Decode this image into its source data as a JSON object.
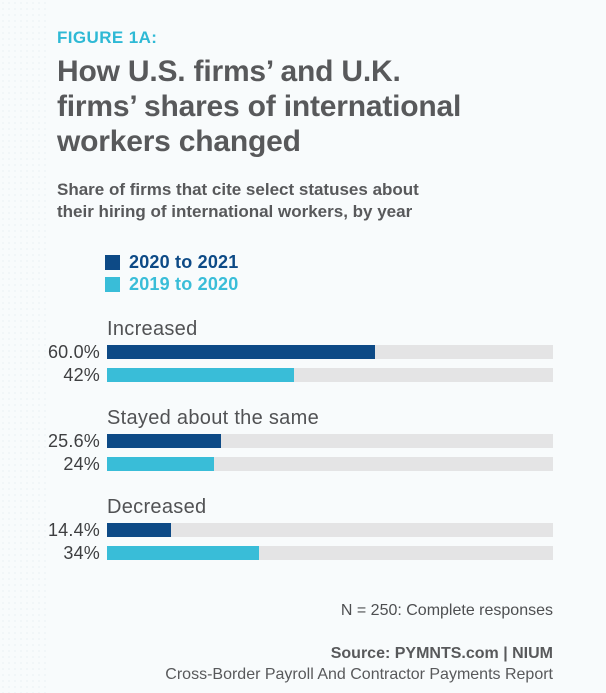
{
  "figure_label": "FIGURE 1A:",
  "title": "How U.S. firms’ and U.K.\nfirms’ shares of international\nworkers changed",
  "subtitle": "Share of firms that cite select statuses about\ntheir hiring of international workers, by year",
  "colors": {
    "accent_cyan": "#2eb9d5",
    "navy": "#0d4a86",
    "cyan": "#39bdd8",
    "track_gray": "#e4e4e5",
    "heading_gray": "#58595b"
  },
  "chart_data": {
    "type": "bar",
    "orientation": "horizontal",
    "title": "How U.S. firms’ and U.K. firms’ shares of international workers changed",
    "subtitle": "Share of firms that cite select statuses about their hiring of international workers, by year",
    "categories": [
      "Increased",
      "Stayed about the same",
      "Decreased"
    ],
    "series": [
      {
        "name": "2020 to 2021",
        "color": "#0d4a86",
        "values": [
          60.0,
          25.6,
          14.4
        ],
        "labels": [
          "60.0%",
          "25.6%",
          "14.4%"
        ]
      },
      {
        "name": "2019 to 2020",
        "color": "#39bdd8",
        "values": [
          42,
          24,
          34
        ],
        "labels": [
          "42%",
          "24%",
          "34%"
        ]
      }
    ],
    "xlim": [
      0,
      100
    ],
    "grid": false,
    "legend_position": "top-left",
    "value_label_position": "left"
  },
  "footer": {
    "note": "N = 250: Complete responses",
    "source": "Source: PYMNTS.com | NIUM",
    "report": "Cross-Border Payroll And Contractor Payments Report"
  }
}
